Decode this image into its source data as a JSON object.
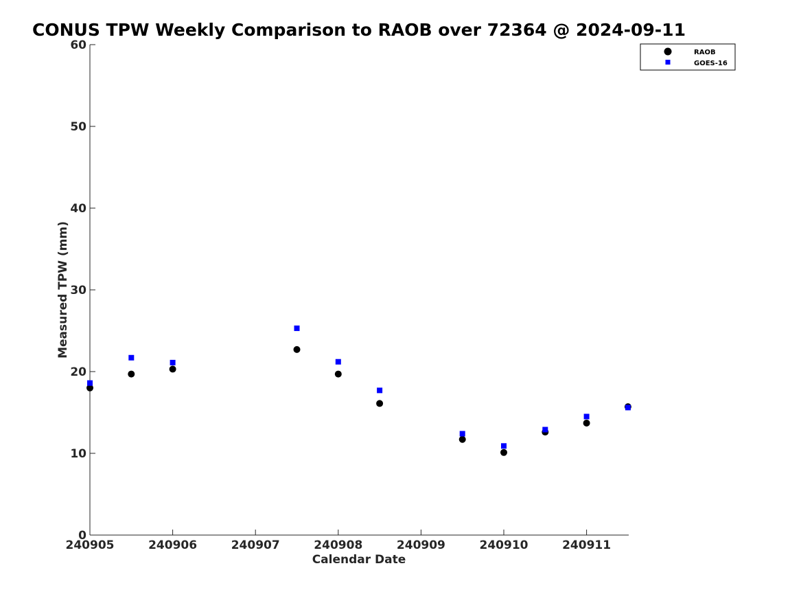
{
  "chart_data": {
    "type": "scatter",
    "title": "CONUS TPW Weekly Comparison to RAOB over 72364 @ 2024-09-11",
    "xlabel": "Calendar Date",
    "ylabel": "Measured TPW (mm)",
    "x_tick_labels": [
      "240905",
      "240906",
      "240907",
      "240908",
      "240909",
      "240910",
      "240911"
    ],
    "y_tick_labels": [
      "0",
      "10",
      "20",
      "30",
      "40",
      "50",
      "60"
    ],
    "xlim": [
      "240905",
      "240911.5"
    ],
    "ylim": [
      0,
      60
    ],
    "grid": false,
    "legend_position": "top-right",
    "series": [
      {
        "name": "RAOB",
        "marker": "circle",
        "color": "#000000",
        "points": [
          {
            "x": "2024-09-05 00Z",
            "y": 18.0
          },
          {
            "x": "2024-09-05 12Z",
            "y": 19.7
          },
          {
            "x": "2024-09-06 00Z",
            "y": 20.3
          },
          {
            "x": "2024-09-07 12Z",
            "y": 22.7
          },
          {
            "x": "2024-09-08 00Z",
            "y": 19.7
          },
          {
            "x": "2024-09-08 12Z",
            "y": 16.1
          },
          {
            "x": "2024-09-09 12Z",
            "y": 11.7
          },
          {
            "x": "2024-09-10 00Z",
            "y": 10.1
          },
          {
            "x": "2024-09-10 12Z",
            "y": 12.6
          },
          {
            "x": "2024-09-11 00Z",
            "y": 13.7
          },
          {
            "x": "2024-09-11 12Z",
            "y": 15.7
          }
        ]
      },
      {
        "name": "GOES-16",
        "marker": "square",
        "color": "#0000ff",
        "points": [
          {
            "x": "2024-09-05 00Z",
            "y": 18.6
          },
          {
            "x": "2024-09-05 12Z",
            "y": 21.7
          },
          {
            "x": "2024-09-06 00Z",
            "y": 21.1
          },
          {
            "x": "2024-09-07 12Z",
            "y": 25.3
          },
          {
            "x": "2024-09-08 00Z",
            "y": 21.2
          },
          {
            "x": "2024-09-08 12Z",
            "y": 17.7
          },
          {
            "x": "2024-09-09 12Z",
            "y": 12.4
          },
          {
            "x": "2024-09-10 00Z",
            "y": 10.9
          },
          {
            "x": "2024-09-10 12Z",
            "y": 12.9
          },
          {
            "x": "2024-09-11 00Z",
            "y": 14.5
          },
          {
            "x": "2024-09-11 12Z",
            "y": 15.6
          }
        ]
      }
    ]
  }
}
